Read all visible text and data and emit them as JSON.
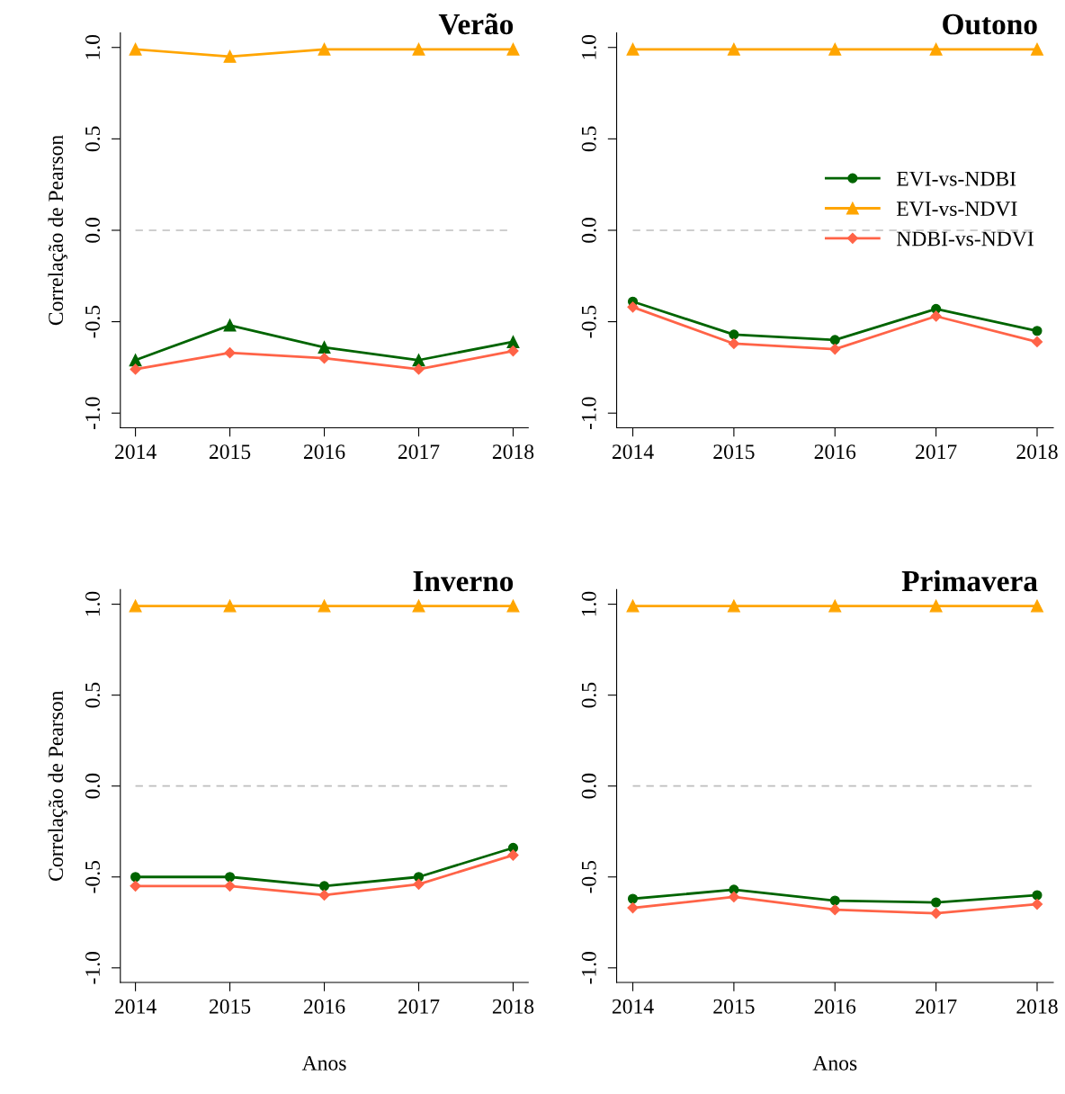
{
  "chart_data": [
    {
      "type": "line",
      "title": "Verão",
      "ylabel": "Correlação de Pearson",
      "x": [
        2014,
        2015,
        2016,
        2017,
        2018
      ],
      "xlim": [
        2013.84,
        2018.16
      ],
      "xticks": [
        2014,
        2015,
        2016,
        2017,
        2018
      ],
      "ylim": [
        -1.08,
        1.08
      ],
      "yticks": [
        {
          "value": -1,
          "label": "-1.0"
        },
        {
          "value": -0.5,
          "label": "-0.5"
        },
        {
          "value": 0,
          "label": "0.0"
        },
        {
          "value": 0.5,
          "label": "0.5"
        },
        {
          "value": 1,
          "label": "1.0"
        }
      ],
      "grid": false,
      "legend": false,
      "ref_lines": [
        {
          "axis": "y",
          "value": 0,
          "color": "#bebebe",
          "line_style": "dashed"
        }
      ],
      "series": [
        {
          "color": "#006400",
          "marker": "triangle",
          "values": [
            -0.71,
            -0.52,
            -0.64,
            -0.71,
            -0.61
          ]
        },
        {
          "color": "#ffa500",
          "marker": "triangle",
          "values": [
            0.99,
            0.95,
            0.99,
            0.99,
            0.99
          ]
        },
        {
          "color": "#ff6347",
          "marker": "diamond",
          "values": [
            -0.76,
            -0.67,
            -0.7,
            -0.76,
            -0.66
          ]
        }
      ]
    },
    {
      "type": "line",
      "title": "Outono",
      "x": [
        2014,
        2015,
        2016,
        2017,
        2018
      ],
      "xlim": [
        2013.84,
        2018.16
      ],
      "xticks": [
        2014,
        2015,
        2016,
        2017,
        2018
      ],
      "ylim": [
        -1.08,
        1.08
      ],
      "yticks": [
        {
          "value": -1,
          "label": "-1.0"
        },
        {
          "value": -0.5,
          "label": "-0.5"
        },
        {
          "value": 0,
          "label": "0.0"
        },
        {
          "value": 0.5,
          "label": "0.5"
        },
        {
          "value": 1,
          "label": "1.0"
        }
      ],
      "grid": false,
      "legend": "right",
      "ref_lines": [
        {
          "axis": "y",
          "value": 0,
          "color": "#bebebe",
          "line_style": "dashed"
        }
      ],
      "series": [
        {
          "name": "EVI-vs-NDBI",
          "color": "#006400",
          "marker": "circle",
          "values": [
            -0.39,
            -0.57,
            -0.6,
            -0.43,
            -0.55
          ]
        },
        {
          "name": "EVI-vs-NDVI",
          "color": "#ffa500",
          "marker": "triangle",
          "values": [
            0.99,
            0.99,
            0.99,
            0.99,
            0.99
          ]
        },
        {
          "name": "NDBI-vs-NDVI",
          "color": "#ff6347",
          "marker": "diamond",
          "values": [
            -0.42,
            -0.62,
            -0.65,
            -0.47,
            -0.61
          ]
        }
      ]
    },
    {
      "type": "line",
      "title": "Inverno",
      "ylabel": "Correlação de Pearson",
      "xlabel": "Anos",
      "x": [
        2014,
        2015,
        2016,
        2017,
        2018
      ],
      "xlim": [
        2013.84,
        2018.16
      ],
      "xticks": [
        2014,
        2015,
        2016,
        2017,
        2018
      ],
      "ylim": [
        -1.08,
        1.08
      ],
      "yticks": [
        {
          "value": -1,
          "label": "-1.0"
        },
        {
          "value": -0.5,
          "label": "-0.5"
        },
        {
          "value": 0,
          "label": "0.0"
        },
        {
          "value": 0.5,
          "label": "0.5"
        },
        {
          "value": 1,
          "label": "1.0"
        }
      ],
      "grid": false,
      "legend": false,
      "ref_lines": [
        {
          "axis": "y",
          "value": 0,
          "color": "#bebebe",
          "line_style": "dashed"
        }
      ],
      "series": [
        {
          "color": "#006400",
          "marker": "circle",
          "values": [
            -0.5,
            -0.5,
            -0.55,
            -0.5,
            -0.34
          ]
        },
        {
          "color": "#ffa500",
          "marker": "triangle",
          "values": [
            0.99,
            0.99,
            0.99,
            0.99,
            0.99
          ]
        },
        {
          "color": "#ff6347",
          "marker": "diamond",
          "values": [
            -0.55,
            -0.55,
            -0.6,
            -0.54,
            -0.38
          ]
        }
      ]
    },
    {
      "type": "line",
      "title": "Primavera",
      "xlabel": "Anos",
      "x": [
        2014,
        2015,
        2016,
        2017,
        2018
      ],
      "xlim": [
        2013.84,
        2018.16
      ],
      "xticks": [
        2014,
        2015,
        2016,
        2017,
        2018
      ],
      "ylim": [
        -1.08,
        1.08
      ],
      "yticks": [
        {
          "value": -1,
          "label": "-1.0"
        },
        {
          "value": -0.5,
          "label": "-0.5"
        },
        {
          "value": 0,
          "label": "0.0"
        },
        {
          "value": 0.5,
          "label": "0.5"
        },
        {
          "value": 1,
          "label": "1.0"
        }
      ],
      "grid": false,
      "legend": false,
      "ref_lines": [
        {
          "axis": "y",
          "value": 0,
          "color": "#bebebe",
          "line_style": "dashed"
        }
      ],
      "series": [
        {
          "color": "#006400",
          "marker": "circle",
          "values": [
            -0.62,
            -0.57,
            -0.63,
            -0.64,
            -0.6
          ]
        },
        {
          "color": "#ffa500",
          "marker": "triangle",
          "values": [
            0.99,
            0.99,
            0.99,
            0.99,
            0.99
          ]
        },
        {
          "color": "#ff6347",
          "marker": "diamond",
          "values": [
            -0.67,
            -0.61,
            -0.68,
            -0.7,
            -0.65
          ]
        }
      ]
    }
  ]
}
